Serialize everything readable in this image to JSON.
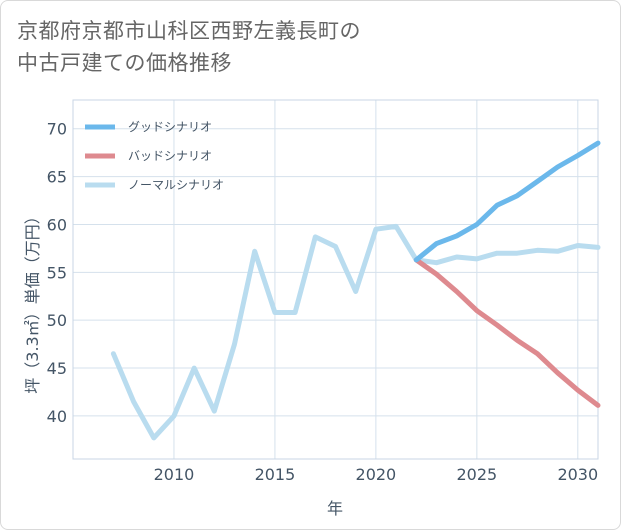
{
  "chart_data": {
    "type": "line",
    "title_line1": "京都府京都市山科区西野左義長町の",
    "title_line2": "中古戸建ての価格推移",
    "xlabel": "年",
    "ylabel": "坪（3.3㎡）単価（万円）",
    "xlim": [
      2005,
      2031
    ],
    "ylim": [
      35.5,
      73
    ],
    "grid": true,
    "x_ticks": [
      2010,
      2015,
      2020,
      2025,
      2030
    ],
    "y_ticks": [
      40,
      45,
      50,
      55,
      60,
      65,
      70
    ],
    "legend_position": "top-left",
    "series": [
      {
        "name": "グッドシナリオ",
        "color": "#6bb8eb",
        "x": [
          2022,
          2023,
          2024,
          2025,
          2026,
          2027,
          2028,
          2029,
          2030,
          2031
        ],
        "values": [
          56.3,
          58.0,
          58.8,
          60.0,
          62.0,
          63.0,
          64.5,
          66.0,
          67.2,
          68.5
        ]
      },
      {
        "name": "バッドシナリオ",
        "color": "#de8a8f",
        "x": [
          2022,
          2023,
          2024,
          2025,
          2026,
          2027,
          2028,
          2029,
          2030,
          2031
        ],
        "values": [
          56.3,
          54.8,
          53.0,
          51.0,
          49.5,
          47.9,
          46.5,
          44.5,
          42.7,
          41.1
        ]
      },
      {
        "name": "ノーマルシナリオ",
        "color": "#b9dcef",
        "x": [
          2007,
          2008,
          2009,
          2010,
          2011,
          2012,
          2013,
          2014,
          2015,
          2016,
          2017,
          2018,
          2019,
          2020,
          2021,
          2022,
          2023,
          2024,
          2025,
          2026,
          2027,
          2028,
          2029,
          2030,
          2031
        ],
        "values": [
          46.5,
          41.5,
          37.7,
          40.0,
          45.0,
          40.5,
          47.5,
          57.2,
          50.8,
          50.8,
          58.7,
          57.7,
          53.0,
          59.5,
          59.8,
          56.3,
          56.0,
          56.6,
          56.4,
          57.0,
          57.0,
          57.3,
          57.2,
          57.8,
          57.6
        ]
      }
    ]
  }
}
